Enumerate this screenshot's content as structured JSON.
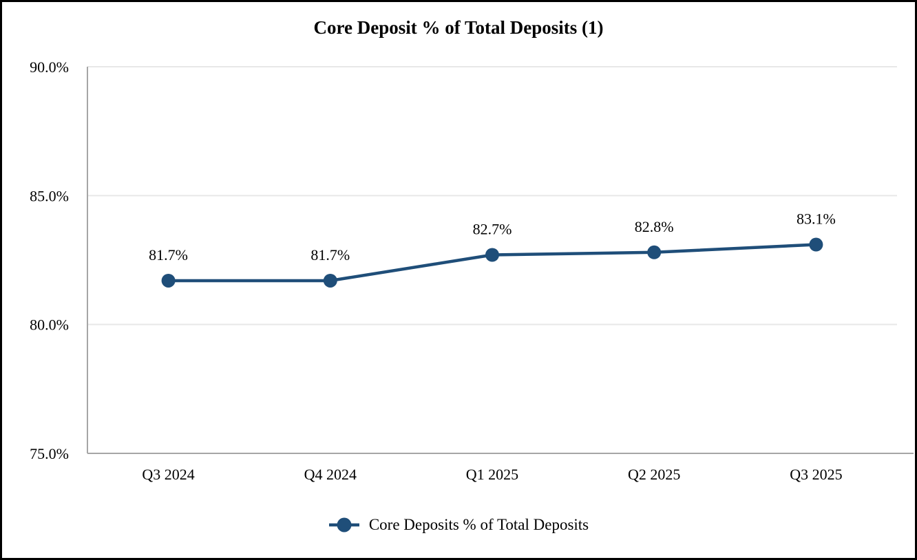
{
  "figure": {
    "background": "#FFFFFF",
    "border_color": "#000000"
  },
  "chart_data": {
    "type": "line",
    "title": "Core Deposit % of Total Deposits (1)",
    "categories": [
      "Q3 2024",
      "Q4 2024",
      "Q1 2025",
      "Q2 2025",
      "Q3 2025"
    ],
    "series": [
      {
        "name": "Core Deposits % of Total Deposits",
        "values": [
          81.7,
          81.7,
          82.7,
          82.8,
          83.1
        ],
        "point_labels": [
          "81.7%",
          "81.7%",
          "82.7%",
          "82.8%",
          "83.1%"
        ],
        "color": "#1F4E79"
      }
    ],
    "xlabel": "",
    "ylabel": "",
    "ylim": [
      75,
      90
    ],
    "yticks": [
      {
        "value": 90,
        "label": "90.0%"
      },
      {
        "value": 85,
        "label": "85.0%"
      },
      {
        "value": 80,
        "label": "80.0%"
      },
      {
        "value": 75,
        "label": "75.0%"
      }
    ],
    "grid": "horizontal",
    "gridline_color": "#E8E8E8",
    "axis_line_color": "#A6A6A6",
    "text_color": "#000000",
    "legend": {
      "position": "bottom",
      "entries": [
        "Core Deposits % of Total Deposits"
      ]
    }
  }
}
